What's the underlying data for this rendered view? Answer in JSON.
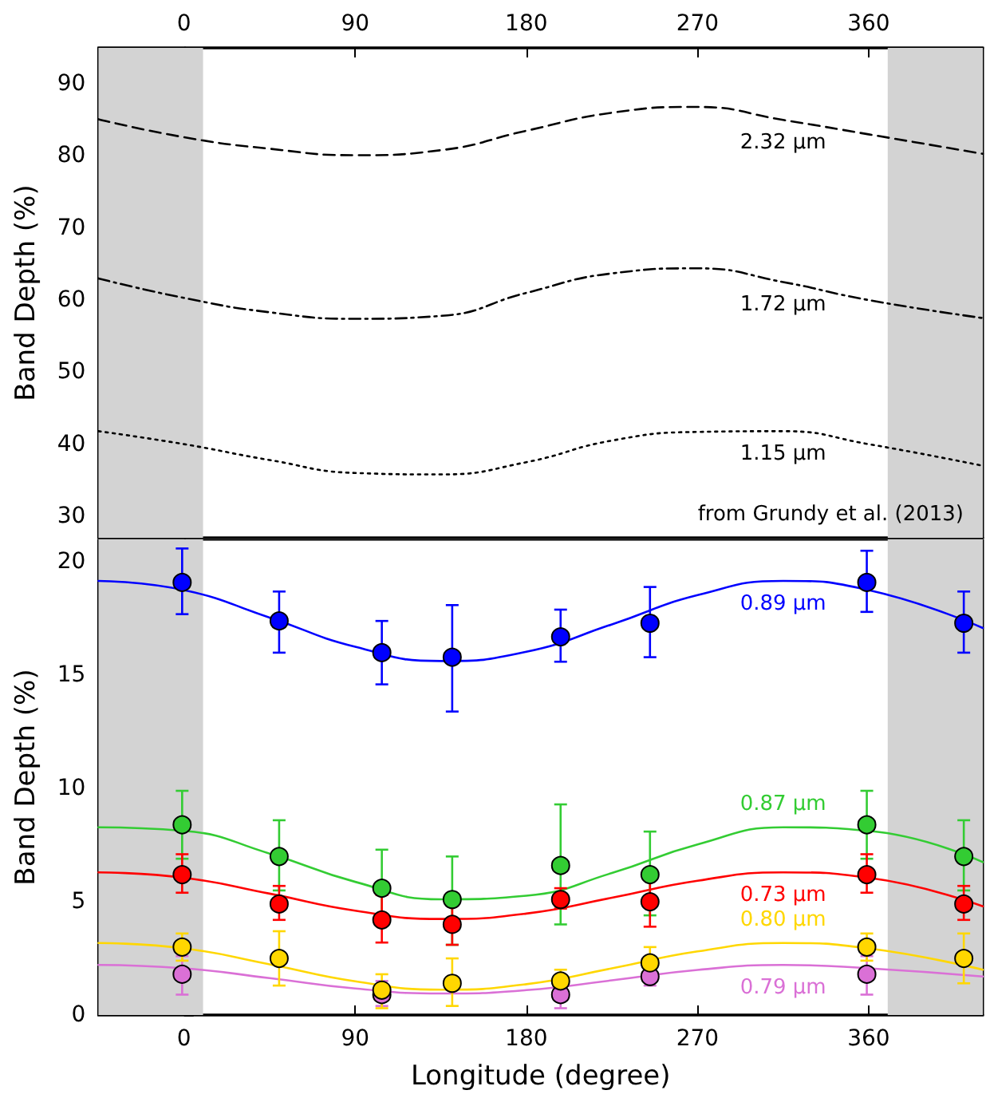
{
  "chart_data": [
    {
      "type": "line",
      "ylabel": "Band Depth (%)",
      "xlim": [
        -45,
        420
      ],
      "tick_labels": "y",
      "x2lim": [
        -45,
        420
      ],
      "x2ticks": [
        0,
        90,
        180,
        270,
        360
      ],
      "ylim": [
        27,
        95
      ],
      "yticks": [
        30,
        40,
        50,
        60,
        70,
        80,
        90
      ],
      "annotations": [
        "from Grundy et al. (2013)"
      ],
      "bands": [
        {
          "axis": "x",
          "from": -45,
          "to": 10,
          "color": "#d3d3d3"
        },
        {
          "axis": "x",
          "from": 370,
          "to": 420,
          "color": "#d3d3d3"
        }
      ],
      "x": [
        -45,
        0,
        45,
        90,
        135,
        180,
        225,
        270,
        315,
        360,
        420
      ],
      "series": [
        {
          "name": "2.32 μm",
          "color": "#000000",
          "line_style": "dashed",
          "values": [
            85.1,
            82.6,
            81.0,
            80.1,
            80.8,
            83.5,
            86.0,
            86.8,
            85.0,
            83.0,
            80.3
          ]
        },
        {
          "name": "1.72 μm",
          "color": "#000000",
          "line_style": "dashdot",
          "values": [
            63.0,
            60.3,
            58.3,
            57.4,
            57.8,
            61.0,
            63.7,
            64.4,
            62.5,
            60.0,
            57.5
          ]
        },
        {
          "name": "1.15 μm",
          "color": "#000000",
          "line_style": "dotted",
          "values": [
            41.8,
            40.0,
            37.8,
            36.0,
            35.8,
            37.5,
            40.5,
            41.7,
            41.8,
            40.0,
            37.0
          ]
        }
      ]
    },
    {
      "type": "scatter",
      "xlabel": "Longitude (degree)",
      "ylabel": "Band Depth (%)",
      "xlim": [
        -45,
        420
      ],
      "xticks": [
        0,
        90,
        180,
        270,
        360
      ],
      "ylim": [
        0,
        21
      ],
      "yticks": [
        0,
        5,
        10,
        15,
        20
      ],
      "bands": [
        {
          "axis": "x",
          "from": -45,
          "to": 10,
          "color": "#d3d3d3"
        },
        {
          "axis": "x",
          "from": 370,
          "to": 420,
          "color": "#d3d3d3"
        }
      ],
      "series": [
        {
          "type": "line",
          "name": "0.89 μm",
          "color": "#0000ff",
          "x": [
            -45,
            0,
            45,
            90,
            135,
            180,
            225,
            270,
            315,
            360,
            420
          ],
          "values": [
            19.17,
            18.76,
            17.55,
            16.26,
            15.63,
            16.04,
            17.25,
            18.54,
            19.17,
            18.76,
            17.09
          ]
        },
        {
          "type": "line",
          "name": "0.87 μm",
          "color": "#33cc33",
          "x": [
            -45,
            0,
            45,
            90,
            135,
            180,
            225,
            270,
            315,
            360,
            420
          ],
          "values": [
            8.29,
            8.13,
            7.13,
            5.88,
            5.11,
            5.27,
            6.27,
            7.53,
            8.29,
            8.13,
            6.75
          ]
        },
        {
          "type": "line",
          "name": "0.73 μm",
          "color": "#ff0000",
          "x": [
            -45,
            0,
            45,
            90,
            135,
            180,
            225,
            270,
            315,
            360,
            420
          ],
          "values": [
            6.3,
            6.06,
            5.36,
            4.61,
            4.24,
            4.48,
            5.18,
            5.93,
            6.3,
            6.06,
            4.8
          ]
        },
        {
          "type": "line",
          "name": "0.80 μm",
          "color": "#ffd700",
          "x": [
            -45,
            0,
            45,
            90,
            135,
            180,
            225,
            270,
            315,
            360,
            420
          ],
          "values": [
            3.18,
            2.94,
            2.24,
            1.49,
            1.12,
            1.36,
            2.06,
            2.81,
            3.18,
            2.94,
            2.0
          ]
        },
        {
          "type": "line",
          "name": "0.79 μm",
          "color": "#da70d6",
          "x": [
            -45,
            0,
            45,
            90,
            135,
            180,
            225,
            270,
            315,
            360,
            420
          ],
          "values": [
            2.21,
            2.06,
            1.63,
            1.17,
            0.95,
            1.1,
            1.53,
            1.99,
            2.21,
            2.06,
            1.7
          ]
        },
        {
          "color": "#0000ff",
          "marker": "circle",
          "x": [
            -1,
            50,
            104,
            141,
            198,
            245,
            359,
            410
          ],
          "values": [
            19.1,
            17.4,
            16.0,
            15.8,
            16.7,
            17.3,
            19.1,
            17.3
          ],
          "errors": [
            [
              17.7,
              20.6
            ],
            [
              16.0,
              18.7
            ],
            [
              14.6,
              17.4
            ],
            [
              13.4,
              18.1
            ],
            [
              15.6,
              17.9
            ],
            [
              15.8,
              18.9
            ],
            [
              17.8,
              20.5
            ],
            [
              16.0,
              18.7
            ]
          ]
        },
        {
          "color": "#33cc33",
          "marker": "circle",
          "x": [
            -1,
            50,
            104,
            141,
            198,
            245,
            359,
            410
          ],
          "values": [
            8.4,
            7.0,
            5.6,
            5.1,
            6.6,
            6.2,
            8.4,
            7.0
          ],
          "errors": [
            [
              6.9,
              9.9
            ],
            [
              5.5,
              8.6
            ],
            [
              4.0,
              7.3
            ],
            [
              3.1,
              7.0
            ],
            [
              4.0,
              9.3
            ],
            [
              4.4,
              8.1
            ],
            [
              6.9,
              9.9
            ],
            [
              5.5,
              8.6
            ]
          ]
        },
        {
          "color": "#ff0000",
          "marker": "circle",
          "x": [
            -1,
            50,
            104,
            141,
            198,
            245,
            359,
            410
          ],
          "values": [
            6.2,
            4.9,
            4.2,
            4.0,
            5.1,
            5.0,
            6.2,
            4.9
          ],
          "errors": [
            [
              5.4,
              7.1
            ],
            [
              4.2,
              5.7
            ],
            [
              3.2,
              5.3
            ],
            [
              3.1,
              4.9
            ],
            [
              4.7,
              5.6
            ],
            [
              3.9,
              6.0
            ],
            [
              5.4,
              7.1
            ],
            [
              4.2,
              5.7
            ]
          ]
        },
        {
          "color": "#da70d6",
          "marker": "circle",
          "x": [
            -1,
            104,
            198,
            245,
            359
          ],
          "values": [
            1.8,
            0.9,
            0.9,
            1.7,
            1.8
          ],
          "errors": [
            [
              0.9,
              2.6
            ],
            [
              0.4,
              1.5
            ],
            [
              0.3,
              1.3
            ],
            [
              1.3,
              2.2
            ],
            [
              0.9,
              2.6
            ]
          ]
        },
        {
          "color": "#ffd700",
          "marker": "circle",
          "x": [
            -1,
            50,
            104,
            141,
            198,
            245,
            359,
            410
          ],
          "values": [
            3.0,
            2.5,
            1.1,
            1.4,
            1.5,
            2.3,
            3.0,
            2.5
          ],
          "errors": [
            [
              2.4,
              3.6
            ],
            [
              1.3,
              3.7
            ],
            [
              0.3,
              1.8
            ],
            [
              0.4,
              2.5
            ],
            [
              0.9,
              2.0
            ],
            [
              1.7,
              3.0
            ],
            [
              2.4,
              3.6
            ],
            [
              1.4,
              3.6
            ]
          ]
        }
      ]
    }
  ]
}
